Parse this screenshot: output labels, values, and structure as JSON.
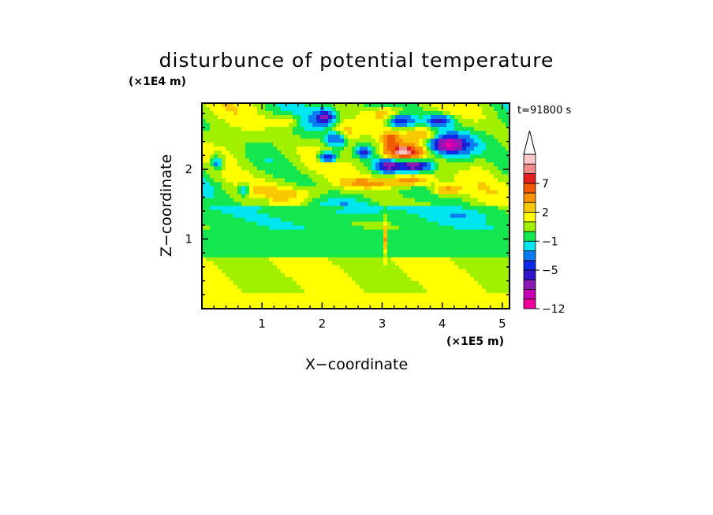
{
  "chart_data": {
    "type": "heatmap",
    "title": "disturbunce of potential temperature",
    "xlabel": "X−coordinate",
    "ylabel": "Z−coordinate",
    "x_unit": "(×1E5 m)",
    "y_unit": "(×1E4 m)",
    "time_label": "t=91800 s",
    "xlim": [
      0,
      5.12
    ],
    "ylim": [
      0,
      2.95
    ],
    "x_ticks": [
      {
        "value": 1,
        "label": "1"
      },
      {
        "value": 2,
        "label": "2"
      },
      {
        "value": 3,
        "label": "3"
      },
      {
        "value": 4,
        "label": "4"
      },
      {
        "value": 5,
        "label": "5"
      }
    ],
    "y_ticks": [
      {
        "value": 1,
        "label": "1"
      },
      {
        "value": 2,
        "label": "2"
      }
    ],
    "colorbar": {
      "levels": [
        -12,
        -10,
        -8,
        -6,
        -5,
        -4,
        -2,
        -1,
        0,
        1,
        2,
        3,
        5,
        7,
        8,
        9
      ],
      "labels": [
        {
          "value": -12,
          "label": "−12"
        },
        {
          "value": -5,
          "label": "−5"
        },
        {
          "value": -1,
          "label": "−1"
        },
        {
          "value": 2,
          "label": "2"
        },
        {
          "value": 7,
          "label": "7"
        }
      ],
      "colors": [
        "#f0009a",
        "#c800b4",
        "#8a1ab4",
        "#2f14c8",
        "#0a2ae6",
        "#0a7ef0",
        "#00e6f0",
        "#14e650",
        "#a0f000",
        "#ffff00",
        "#f8c800",
        "#f89400",
        "#f05a00",
        "#e61e1e",
        "#f08c8c",
        "#fac8c8"
      ],
      "extend_color": "#ffffff",
      "extend": "max"
    }
  }
}
